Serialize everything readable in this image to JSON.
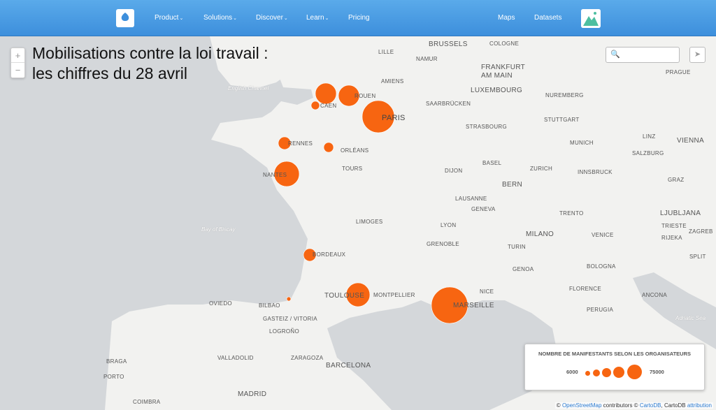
{
  "nav": {
    "items": [
      {
        "label": "Product",
        "dropdown": true
      },
      {
        "label": "Solutions",
        "dropdown": true
      },
      {
        "label": "Discover",
        "dropdown": true
      },
      {
        "label": "Learn",
        "dropdown": true
      },
      {
        "label": "Pricing",
        "dropdown": false
      }
    ],
    "right": [
      "Maps",
      "Datasets"
    ]
  },
  "map": {
    "title": "Mobilisations contre la loi travail : les chiffres du 28 avril",
    "zoom_in": "+",
    "zoom_out": "−",
    "search_placeholder": "",
    "colors": {
      "bubble": "#f76511",
      "sea": "#d4d7da",
      "land": "#f2f2f0"
    },
    "cities": [
      "LILLE",
      "BRUSSELS",
      "COLOGNE",
      "NAMUR",
      "FRANKFURT",
      "AM MAIN",
      "AMIENS",
      "LUXEMBOURG",
      "NUREMBERG",
      "PRAGUE",
      "ROUEN",
      "CAEN",
      "SAARBRÜCKEN",
      "PARIS",
      "STUTTGART",
      "STRASBOURG",
      "MUNICH",
      "LINZ",
      "VIENNA",
      "RENNES",
      "ORLÉANS",
      "SALZBURG",
      "TOURS",
      "BASEL",
      "NANTES",
      "DIJON",
      "ZURICH",
      "BERN",
      "INNSBRUCK",
      "GRAZ",
      "LAUSANNE",
      "GENEVA",
      "TRENTO",
      "LJUBLJANA",
      "LIMOGES",
      "LYON",
      "MILANO",
      "VENICE",
      "TRIESTE",
      "ZAGREB",
      "GRENOBLE",
      "TURIN",
      "RIJEKA",
      "BORDEAUX",
      "GENOA",
      "BOLOGNA",
      "SPLIT",
      "NICE",
      "FLORENCE",
      "TOULOUSE",
      "MONTPELLIER",
      "MARSEILLE",
      "ANCONA",
      "OVIEDO",
      "BILBAO",
      "PERUGIA",
      "GASTEIZ / VITORIA",
      "LOGROÑO",
      "BRAGA",
      "VALLADOLID",
      "ZARAGOZA",
      "PORTO",
      "BARCELONA",
      "MADRID",
      "COIMBRA"
    ],
    "seas": [
      "English Channel",
      "Bay of Biscay",
      "Adriatic Sea"
    ],
    "bubbles": [
      {
        "city": "LE HAVRE"
      },
      {
        "city": "ROUEN"
      },
      {
        "city": "CAEN"
      },
      {
        "city": "PARIS"
      },
      {
        "city": "RENNES"
      },
      {
        "city": "LE MANS"
      },
      {
        "city": "NANTES"
      },
      {
        "city": "BORDEAUX"
      },
      {
        "city": "BAYONNE"
      },
      {
        "city": "TOULOUSE"
      },
      {
        "city": "MARSEILLE"
      }
    ]
  },
  "legend": {
    "title": "NOMBRE DE MANIFESTANTS SELON LES ORGANISATEURS",
    "min": "6000",
    "max": "75000"
  },
  "attribution": {
    "osm": "OpenStreetMap",
    "contributors": "contributors ©",
    "cartodb": "CartoDB",
    "sep": ", CartoDB",
    "attribution": "attribution",
    "copy": "©"
  }
}
